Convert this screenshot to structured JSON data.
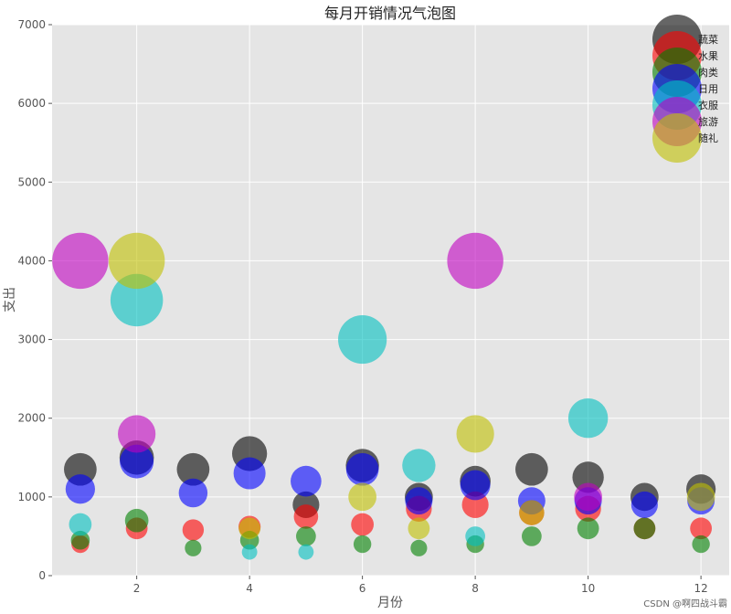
{
  "chart_data": {
    "type": "scatter",
    "title": "每月开销情况气泡图",
    "xlabel": "月份",
    "ylabel": "支出",
    "xlim": [
      0.5,
      12.5
    ],
    "ylim": [
      0,
      7000
    ],
    "xticks": [
      2,
      4,
      6,
      8,
      10,
      12
    ],
    "yticks": [
      0,
      1000,
      2000,
      3000,
      4000,
      5000,
      6000,
      7000
    ],
    "grid": true,
    "legend_position": "top-right",
    "x": [
      1,
      2,
      3,
      4,
      5,
      6,
      7,
      8,
      9,
      10,
      11,
      12
    ],
    "series": [
      {
        "name": "蔬菜",
        "color": "#000000",
        "values": [
          1350,
          1500,
          1350,
          1550,
          900,
          1400,
          1000,
          1200,
          1350,
          1250,
          1000,
          1100
        ]
      },
      {
        "name": "水果",
        "color": "#ff0000",
        "values": [
          400,
          600,
          580,
          620,
          750,
          650,
          850,
          900,
          800,
          850,
          600,
          600
        ]
      },
      {
        "name": "肉类",
        "color": "#008000",
        "values": [
          450,
          700,
          350,
          450,
          500,
          400,
          350,
          400,
          500,
          600,
          600,
          400
        ]
      },
      {
        "name": "日用",
        "color": "#0000ff",
        "values": [
          1100,
          1450,
          1050,
          1300,
          1200,
          1350,
          950,
          1150,
          950,
          950,
          900,
          950
        ]
      },
      {
        "name": "衣服",
        "color": "#00bfbf",
        "values": [
          650,
          3500,
          0,
          300,
          300,
          3000,
          1400,
          500,
          0,
          2000,
          0,
          0
        ]
      },
      {
        "name": "旅游",
        "color": "#bf00bf",
        "values": [
          4000,
          1800,
          0,
          0,
          0,
          0,
          0,
          4000,
          0,
          1000,
          0,
          0
        ]
      },
      {
        "name": "随礼",
        "color": "#bfbf00",
        "values": [
          0,
          4000,
          0,
          600,
          0,
          1000,
          600,
          1800,
          800,
          0,
          0,
          1000
        ]
      }
    ]
  },
  "watermark": "CSDN @啊四战斗霸"
}
